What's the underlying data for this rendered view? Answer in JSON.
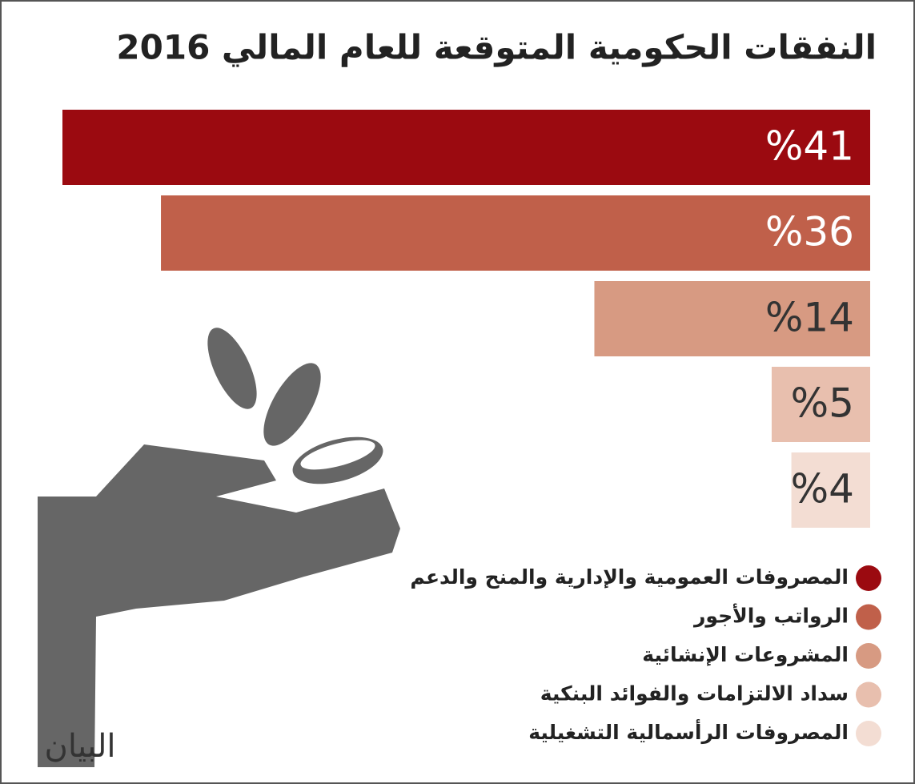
{
  "chart_data": {
    "type": "bar",
    "orientation": "horizontal",
    "title": "النفقات الحكومية المتوقعة للعام المالي 2016",
    "categories": [
      "المصروفات العمومية والإدارية والمنح والدعم",
      "الرواتب والأجور",
      "المشروعات الإنشائية",
      "سداد الالتزامات والفوائد البنكية",
      "المصروفات الرأسمالية التشغيلية"
    ],
    "values": [
      41,
      36,
      14,
      5,
      4
    ],
    "value_labels": [
      "%41",
      "%36",
      "%14",
      "%5",
      "%4"
    ],
    "colors": [
      "#9b0a10",
      "#c0604a",
      "#d79a82",
      "#e8bfae",
      "#f3ddd3"
    ],
    "logo": "البيان"
  }
}
